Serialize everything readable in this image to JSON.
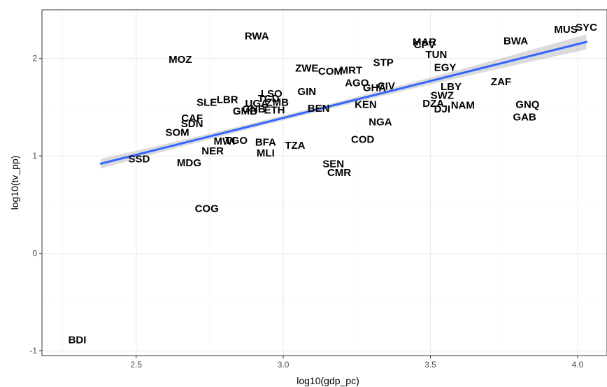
{
  "chart_data": {
    "type": "scatter",
    "xlabel": "log10(gdp_pc)",
    "ylabel": "log10(tv_pp)",
    "xlim": [
      2.18,
      4.1
    ],
    "ylim": [
      -1.05,
      2.5
    ],
    "x_ticks": [
      2.5,
      3.0,
      3.5,
      4.0
    ],
    "x_tick_labels": [
      "2.5",
      "3.0",
      "3.5",
      "4.0"
    ],
    "y_ticks": [
      -1,
      0,
      1,
      2
    ],
    "y_tick_labels": [
      "-1",
      "0",
      "1",
      "2"
    ],
    "grid": true,
    "points": [
      {
        "label": "RWA",
        "x": 2.91,
        "y": 2.23
      },
      {
        "label": "MOZ",
        "x": 2.65,
        "y": 1.99
      },
      {
        "label": "ZWE",
        "x": 3.08,
        "y": 1.9
      },
      {
        "label": "COM",
        "x": 3.16,
        "y": 1.87
      },
      {
        "label": "MRT",
        "x": 3.23,
        "y": 1.88
      },
      {
        "label": "STP",
        "x": 3.34,
        "y": 1.96
      },
      {
        "label": "MAR",
        "x": 3.48,
        "y": 2.17
      },
      {
        "label": "CPV",
        "x": 3.48,
        "y": 2.14
      },
      {
        "label": "TUN",
        "x": 3.52,
        "y": 2.04
      },
      {
        "label": "EGY",
        "x": 3.55,
        "y": 1.91
      },
      {
        "label": "BWA",
        "x": 3.79,
        "y": 2.18
      },
      {
        "label": "MUS",
        "x": 3.96,
        "y": 2.3
      },
      {
        "label": "SYC",
        "x": 4.03,
        "y": 2.32
      },
      {
        "label": "ZAF",
        "x": 3.74,
        "y": 1.76
      },
      {
        "label": "AGO",
        "x": 3.25,
        "y": 1.75
      },
      {
        "label": "GHA",
        "x": 3.31,
        "y": 1.7
      },
      {
        "label": "CIV",
        "x": 3.35,
        "y": 1.72
      },
      {
        "label": "GIN",
        "x": 3.08,
        "y": 1.66
      },
      {
        "label": "LBY",
        "x": 3.57,
        "y": 1.71
      },
      {
        "label": "SWZ",
        "x": 3.54,
        "y": 1.62
      },
      {
        "label": "DZA",
        "x": 3.51,
        "y": 1.54
      },
      {
        "label": "DJI",
        "x": 3.54,
        "y": 1.48
      },
      {
        "label": "NAM",
        "x": 3.61,
        "y": 1.52
      },
      {
        "label": "GNQ",
        "x": 3.83,
        "y": 1.53
      },
      {
        "label": "GAB",
        "x": 3.82,
        "y": 1.4
      },
      {
        "label": "KEN",
        "x": 3.28,
        "y": 1.53
      },
      {
        "label": "NGA",
        "x": 3.33,
        "y": 1.35
      },
      {
        "label": "BEN",
        "x": 3.12,
        "y": 1.49
      },
      {
        "label": "COD",
        "x": 3.27,
        "y": 1.17
      },
      {
        "label": "SLE",
        "x": 2.74,
        "y": 1.55
      },
      {
        "label": "LBR",
        "x": 2.81,
        "y": 1.58
      },
      {
        "label": "LSO",
        "x": 2.96,
        "y": 1.64
      },
      {
        "label": "UGA",
        "x": 2.91,
        "y": 1.54
      },
      {
        "label": "TCD",
        "x": 2.95,
        "y": 1.59
      },
      {
        "label": "ZMB",
        "x": 2.98,
        "y": 1.55
      },
      {
        "label": "GMB",
        "x": 2.87,
        "y": 1.46
      },
      {
        "label": "GNB",
        "x": 2.9,
        "y": 1.48
      },
      {
        "label": "ETH",
        "x": 2.97,
        "y": 1.47
      },
      {
        "label": "CAF",
        "x": 2.69,
        "y": 1.39
      },
      {
        "label": "SDN",
        "x": 2.69,
        "y": 1.33
      },
      {
        "label": "SOM",
        "x": 2.64,
        "y": 1.24
      },
      {
        "label": "MWI",
        "x": 2.8,
        "y": 1.15
      },
      {
        "label": "TGO",
        "x": 2.84,
        "y": 1.16
      },
      {
        "label": "BFA",
        "x": 2.94,
        "y": 1.14
      },
      {
        "label": "TZA",
        "x": 3.04,
        "y": 1.11
      },
      {
        "label": "MLI",
        "x": 2.94,
        "y": 1.03
      },
      {
        "label": "NER",
        "x": 2.76,
        "y": 1.05
      },
      {
        "label": "MDG",
        "x": 2.68,
        "y": 0.93
      },
      {
        "label": "SSD",
        "x": 2.51,
        "y": 0.97
      },
      {
        "label": "SEN",
        "x": 3.17,
        "y": 0.92
      },
      {
        "label": "CMR",
        "x": 3.19,
        "y": 0.83
      },
      {
        "label": "COG",
        "x": 2.74,
        "y": 0.46
      },
      {
        "label": "BDI",
        "x": 2.3,
        "y": -0.89
      }
    ],
    "trend": {
      "x": [
        2.38,
        4.03
      ],
      "y": [
        0.92,
        2.17
      ]
    }
  }
}
